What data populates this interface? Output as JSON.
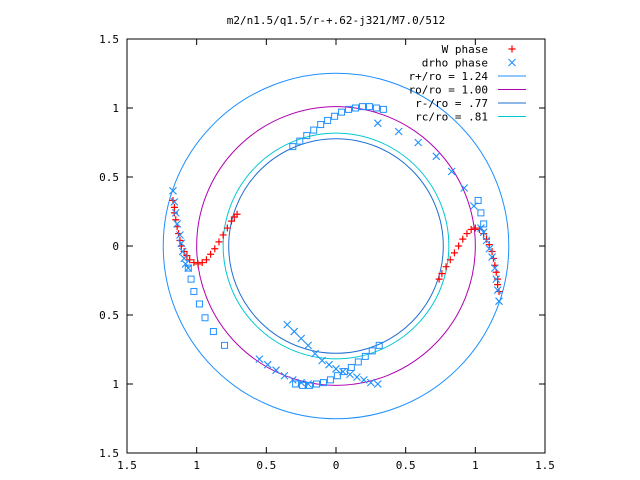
{
  "chart_data": {
    "type": "scatter",
    "title": "m2/n1.5/q1.5/r-+.62-j321/M7.0/512",
    "xlabel": "",
    "ylabel": "",
    "xlim": [
      -1.5,
      1.5
    ],
    "ylim": [
      -1.5,
      1.5
    ],
    "x_tick_values": [
      -1.5,
      -1,
      -0.5,
      0,
      0.5,
      1,
      1.5
    ],
    "x_tick_labels": [
      "1.5",
      "1",
      "0.5",
      "0",
      "0.5",
      "1",
      "1.5"
    ],
    "y_tick_values": [
      1.5,
      1,
      0.5,
      0,
      -0.5,
      -1,
      -1.5
    ],
    "y_tick_labels": [
      "1.5",
      "1",
      "0.5",
      "0",
      "0.5",
      "1",
      "1.5"
    ],
    "grid": false,
    "legend_position": "top-right",
    "series": [
      {
        "name": "W phase",
        "kind": "points",
        "marker": "plus",
        "color": "#ff0000",
        "points": [
          [
            -1.17,
            0.33
          ],
          [
            -1.16,
            0.28
          ],
          [
            -1.16,
            0.24
          ],
          [
            -1.15,
            0.19
          ],
          [
            -1.14,
            0.14
          ],
          [
            -1.13,
            0.09
          ],
          [
            -1.12,
            0.04
          ],
          [
            -1.11,
            0.0
          ],
          [
            -1.09,
            -0.04
          ],
          [
            -1.07,
            -0.07
          ],
          [
            -1.05,
            -0.1
          ],
          [
            -1.02,
            -0.12
          ],
          [
            -0.99,
            -0.13
          ],
          [
            -0.96,
            -0.12
          ],
          [
            -0.93,
            -0.1
          ],
          [
            -0.9,
            -0.06
          ],
          [
            -0.87,
            -0.02
          ],
          [
            -0.84,
            0.03
          ],
          [
            -0.81,
            0.08
          ],
          [
            -0.78,
            0.13
          ],
          [
            -0.75,
            0.18
          ],
          [
            -0.73,
            0.21
          ],
          [
            -0.71,
            0.23
          ],
          [
            0.74,
            -0.24
          ],
          [
            0.76,
            -0.2
          ],
          [
            0.79,
            -0.15
          ],
          [
            0.82,
            -0.1
          ],
          [
            0.85,
            -0.05
          ],
          [
            0.88,
            0.0
          ],
          [
            0.91,
            0.05
          ],
          [
            0.94,
            0.09
          ],
          [
            0.97,
            0.12
          ],
          [
            1.0,
            0.13
          ],
          [
            1.03,
            0.12
          ],
          [
            1.06,
            0.09
          ],
          [
            1.08,
            0.05
          ],
          [
            1.1,
            0.01
          ],
          [
            1.12,
            -0.04
          ],
          [
            1.13,
            -0.09
          ],
          [
            1.14,
            -0.14
          ],
          [
            1.15,
            -0.19
          ],
          [
            1.16,
            -0.24
          ],
          [
            1.16,
            -0.28
          ],
          [
            1.17,
            -0.33
          ]
        ]
      },
      {
        "name": "drho phase",
        "kind": "points",
        "marker": "cross",
        "color": "#1e90ff",
        "points": [
          [
            -1.17,
            0.4
          ],
          [
            -1.16,
            0.32
          ],
          [
            -1.15,
            0.24
          ],
          [
            -1.14,
            0.16
          ],
          [
            -1.12,
            0.08
          ],
          [
            -1.11,
            0.02
          ],
          [
            -1.1,
            -0.04
          ],
          [
            -1.09,
            -0.09
          ],
          [
            -1.08,
            -0.13
          ],
          [
            -1.06,
            -0.16
          ],
          [
            1.17,
            -0.4
          ],
          [
            1.16,
            -0.32
          ],
          [
            1.15,
            -0.24
          ],
          [
            1.14,
            -0.16
          ],
          [
            1.12,
            -0.08
          ],
          [
            1.1,
            -0.02
          ],
          [
            1.08,
            0.04
          ],
          [
            1.06,
            0.1
          ],
          [
            1.04,
            0.13
          ],
          [
            0.99,
            0.29
          ],
          [
            0.92,
            0.42
          ],
          [
            0.83,
            0.54
          ],
          [
            0.72,
            0.65
          ],
          [
            0.59,
            0.75
          ],
          [
            0.45,
            0.83
          ],
          [
            0.3,
            0.89
          ],
          [
            -0.35,
            -0.57
          ],
          [
            -0.3,
            -0.62
          ],
          [
            -0.25,
            -0.67
          ],
          [
            -0.2,
            -0.72
          ],
          [
            -0.15,
            -0.78
          ],
          [
            -0.1,
            -0.83
          ],
          [
            -0.05,
            -0.86
          ],
          [
            0.0,
            -0.89
          ],
          [
            0.05,
            -0.91
          ],
          [
            0.1,
            -0.93
          ],
          [
            0.15,
            -0.95
          ],
          [
            0.2,
            -0.97
          ],
          [
            0.25,
            -0.99
          ],
          [
            0.3,
            -1.0
          ],
          [
            -0.55,
            -0.82
          ],
          [
            -0.49,
            -0.86
          ],
          [
            -0.43,
            -0.9
          ],
          [
            -0.37,
            -0.94
          ],
          [
            -0.31,
            -0.97
          ],
          [
            -0.25,
            -0.99
          ],
          [
            -0.2,
            -1.0
          ]
        ]
      },
      {
        "name": "drho phase",
        "kind": "points",
        "marker": "square",
        "color": "#1e90ff",
        "points": [
          [
            -0.31,
            0.72
          ],
          [
            -0.26,
            0.76
          ],
          [
            -0.21,
            0.8
          ],
          [
            -0.16,
            0.84
          ],
          [
            -0.11,
            0.88
          ],
          [
            -0.06,
            0.91
          ],
          [
            -0.01,
            0.94
          ],
          [
            0.04,
            0.97
          ],
          [
            0.09,
            0.99
          ],
          [
            0.14,
            1.0
          ],
          [
            0.19,
            1.01
          ],
          [
            0.24,
            1.01
          ],
          [
            0.29,
            1.0
          ],
          [
            0.34,
            0.99
          ],
          [
            -1.06,
            -0.16
          ],
          [
            -1.04,
            -0.24
          ],
          [
            -1.02,
            -0.33
          ],
          [
            -0.98,
            -0.42
          ],
          [
            -0.94,
            -0.52
          ],
          [
            -0.88,
            -0.62
          ],
          [
            -0.8,
            -0.72
          ],
          [
            0.31,
            -0.72
          ],
          [
            0.26,
            -0.76
          ],
          [
            0.21,
            -0.8
          ],
          [
            0.16,
            -0.84
          ],
          [
            0.11,
            -0.88
          ],
          [
            0.06,
            -0.91
          ],
          [
            0.01,
            -0.94
          ],
          [
            -0.04,
            -0.97
          ],
          [
            -0.09,
            -0.99
          ],
          [
            -0.14,
            -1.0
          ],
          [
            -0.19,
            -1.01
          ],
          [
            -0.24,
            -1.01
          ],
          [
            -0.29,
            -1.0
          ],
          [
            1.06,
            0.16
          ],
          [
            1.04,
            0.24
          ],
          [
            1.02,
            0.33
          ]
        ]
      },
      {
        "name": "r+/ro = 1.24",
        "kind": "circle",
        "radius": 1.24,
        "color": "#1e90ff"
      },
      {
        "name": "ro/ro = 1.00",
        "kind": "circle",
        "radius": 1.0,
        "color": "#b000b0"
      },
      {
        "name": "r-/ro = .77",
        "kind": "circle",
        "radius": 0.77,
        "color": "#1e6fd0"
      },
      {
        "name": "rc/ro = .81",
        "kind": "circle",
        "radius": 0.81,
        "color": "#00c8d0"
      }
    ],
    "legend": [
      {
        "label": "W phase",
        "symbol": "plus",
        "color": "#ff0000"
      },
      {
        "label": "drho phase",
        "symbol": "cross",
        "color": "#1e90ff"
      },
      {
        "label": "r+/ro = 1.24",
        "symbol": "line",
        "color": "#1e90ff"
      },
      {
        "label": "ro/ro = 1.00",
        "symbol": "line",
        "color": "#b000b0"
      },
      {
        "label": "r-/ro = .77",
        "symbol": "line",
        "color": "#1e6fd0"
      },
      {
        "label": "rc/ro = .81",
        "symbol": "line",
        "color": "#00c8d0"
      }
    ]
  }
}
